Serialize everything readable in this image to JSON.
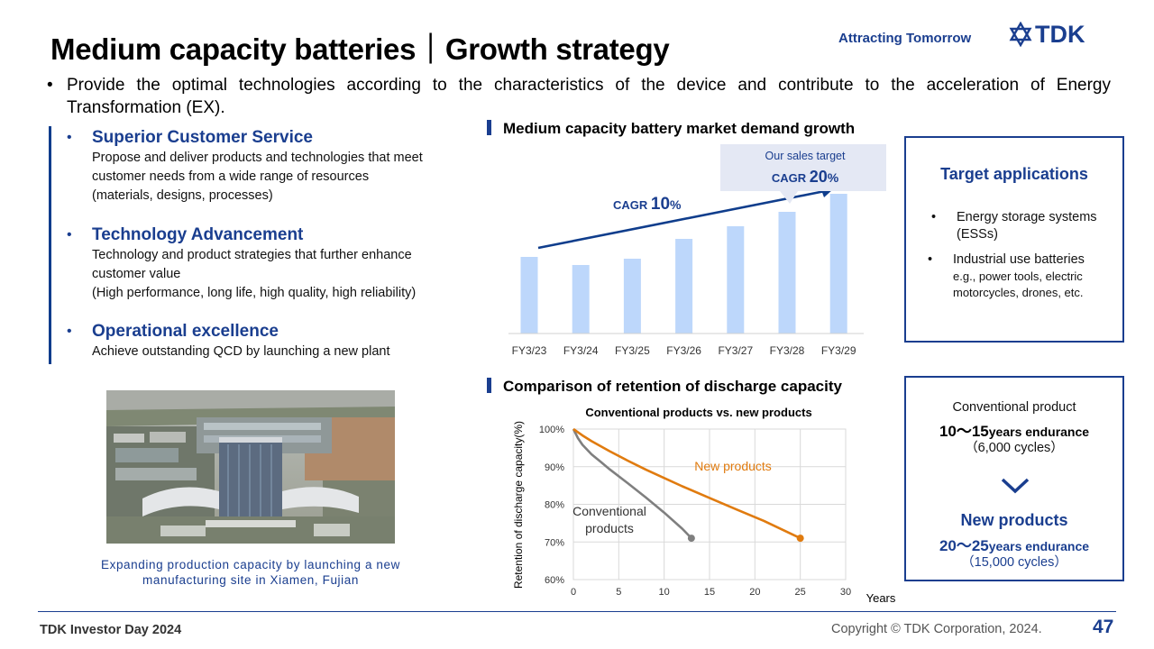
{
  "header": {
    "title": "Medium capacity batteries｜Growth strategy",
    "tagline": "Attracting Tomorrow",
    "logo_text": "TDK"
  },
  "intro": {
    "bullet": "•",
    "text": "Provide the optimal technologies according to the characteristics of the device and contribute to the acceleration of Energy Transformation (EX)."
  },
  "strategies": [
    {
      "heading": "Superior Customer Service",
      "desc": "Propose and deliver products and technologies that meet customer needs from a wide range of resources\n(materials, designs, processes)"
    },
    {
      "heading": "Technology Advancement",
      "desc": "Technology and product strategies that further enhance customer value\n(High performance, long life, high quality, high reliability)"
    },
    {
      "heading": "Operational excellence",
      "desc": "Achieve outstanding QCD by launching a new plant"
    }
  ],
  "photo": {
    "caption": "Expanding production capacity by launching a new manufacturing site in Xiamen, Fujian"
  },
  "market_section": {
    "heading": "Medium capacity battery market demand growth",
    "cagr_prefix": "CAGR ",
    "cagr_value": "10",
    "cagr_unit": "%",
    "target_label": "Our sales target",
    "target_prefix": "CAGR ",
    "target_value": "20",
    "target_unit": "%"
  },
  "retention_section": {
    "heading": "Comparison of retention of discharge capacity"
  },
  "chart_data": [
    {
      "type": "bar",
      "title": "Medium capacity battery market demand growth",
      "categories": [
        "FY3/23",
        "FY3/24",
        "FY3/25",
        "FY3/26",
        "FY3/27",
        "FY3/28",
        "FY3/29"
      ],
      "values": [
        85,
        76,
        83,
        105,
        119,
        135,
        155
      ],
      "ylim": [
        0,
        160
      ],
      "xlabel": "",
      "ylabel": "",
      "annotations": [
        "CAGR 10%",
        "Our sales target CAGR 20%"
      ]
    },
    {
      "type": "line",
      "title": "Conventional products vs. new products",
      "xlabel": "Years",
      "ylabel": "Retention of discharge capacity(%)",
      "xlim": [
        0,
        30
      ],
      "ylim": [
        60,
        100
      ],
      "xticks": [
        "0",
        "5",
        "10",
        "15",
        "20",
        "25",
        "30"
      ],
      "yticks": [
        "60%",
        "70%",
        "80%",
        "90%",
        "100%"
      ],
      "grid": true,
      "series": [
        {
          "name": "Conventional products",
          "label": "Conventional\nproducts",
          "color": "#7f7f7f",
          "x": [
            0,
            0.5,
            1,
            2,
            3,
            4,
            6,
            8,
            10,
            12,
            13
          ],
          "y": [
            100,
            97.6,
            95.8,
            93.3,
            91.3,
            89.3,
            85.6,
            81.8,
            77.8,
            73.5,
            71
          ]
        },
        {
          "name": "New products",
          "label": "New products",
          "color": "#e07b0f",
          "x": [
            0,
            1,
            2,
            4,
            6,
            8,
            10,
            12,
            15,
            18,
            21,
            25
          ],
          "y": [
            100,
            98.3,
            96.8,
            94.1,
            91.6,
            89.2,
            87.0,
            84.8,
            81.7,
            78.6,
            75.6,
            71
          ]
        }
      ]
    }
  ],
  "applications": {
    "title": "Target applications",
    "items": [
      {
        "bullet": "•",
        "text": "Energy storage systems (ESSs)",
        "sub": ""
      },
      {
        "bullet": "•",
        "text": "Industrial use batteries",
        "sub": "e.g., power tools, electric motorcycles, drones, etc."
      }
    ]
  },
  "endurance": {
    "conv_label": "Conventional product",
    "conv_years": "10～15",
    "conv_unit": "years endurance",
    "conv_cycles": "（6,000 cycles）",
    "new_label": "New products",
    "new_years": "20～25",
    "new_unit": "years endurance",
    "new_cycles": "（15,000 cycles）"
  },
  "footer": {
    "event": "TDK Investor Day 2024",
    "copyright": "Copyright © TDK Corporation, 2024.",
    "page": "47"
  },
  "colors": {
    "brand_blue": "#1a3e8f",
    "bar_fill": "#bdd7fb",
    "new_line": "#e07b0f",
    "conv_line": "#7f7f7f"
  }
}
